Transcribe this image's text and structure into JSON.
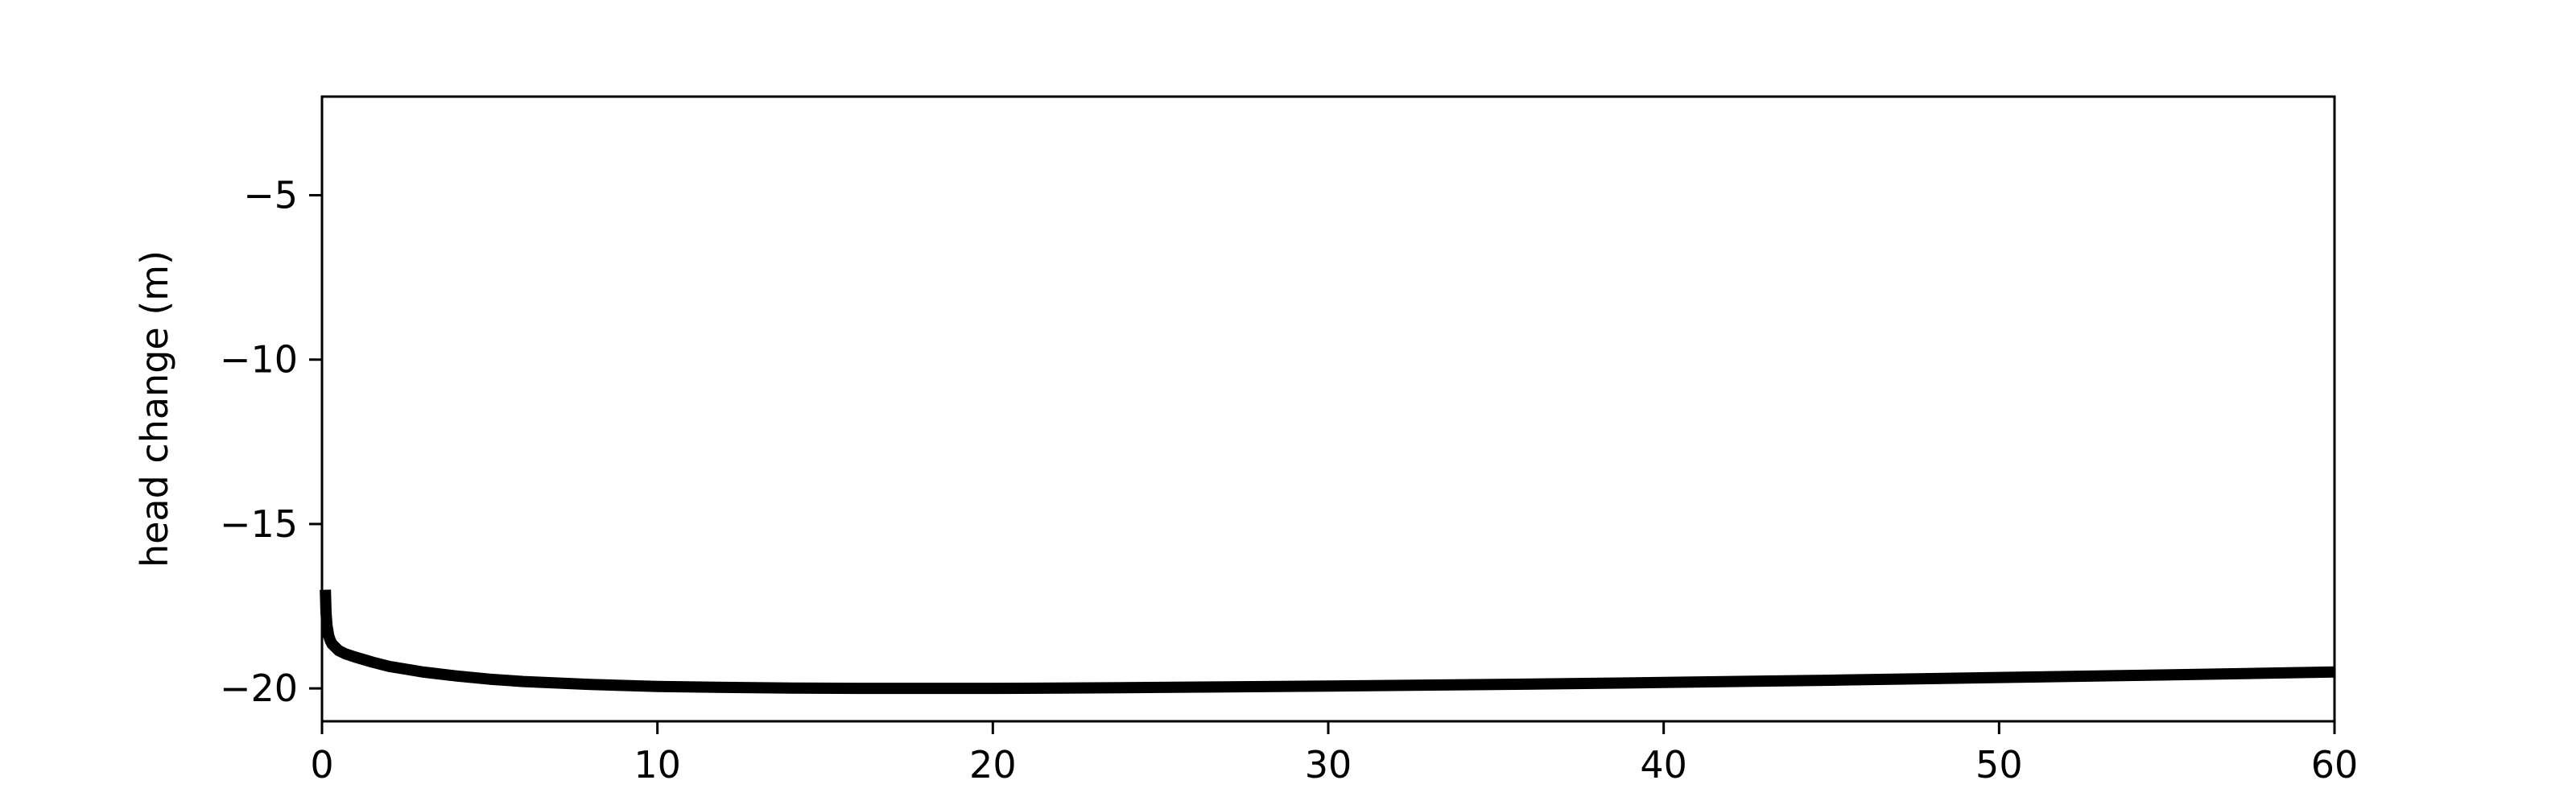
{
  "chart_data": {
    "type": "line",
    "title": "",
    "xlabel": "",
    "ylabel": "head change (m)",
    "xlim": [
      0,
      60
    ],
    "ylim": [
      -21,
      -2
    ],
    "x_ticks": [
      0,
      10,
      20,
      30,
      40,
      50,
      60
    ],
    "y_ticks": [
      -20,
      -15,
      -10,
      -5
    ],
    "grid": false,
    "legend": null,
    "series": [
      {
        "color": "#000000",
        "x": [
          0.1,
          0.12,
          0.15,
          0.2,
          0.25,
          0.3,
          0.4,
          0.5,
          0.7,
          1,
          1.5,
          2,
          3,
          4,
          5,
          6,
          8,
          10,
          12,
          14,
          16,
          18,
          20,
          22,
          25,
          30,
          35,
          40,
          45,
          50,
          55,
          60
        ],
        "y": [
          -17.0,
          -17.7,
          -18.1,
          -18.4,
          -18.55,
          -18.65,
          -18.75,
          -18.85,
          -18.95,
          -19.05,
          -19.2,
          -19.33,
          -19.5,
          -19.62,
          -19.72,
          -19.79,
          -19.88,
          -19.94,
          -19.97,
          -19.99,
          -20.0,
          -20.0,
          -20.0,
          -19.99,
          -19.97,
          -19.93,
          -19.88,
          -19.82,
          -19.75,
          -19.67,
          -19.59,
          -19.5
        ]
      }
    ]
  }
}
